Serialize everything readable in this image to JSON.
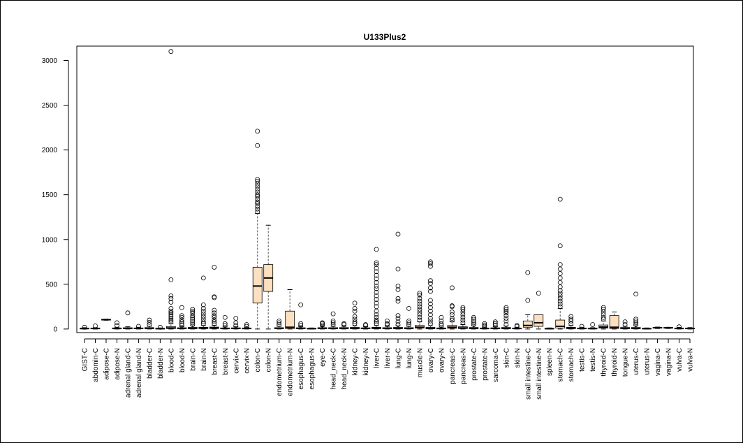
{
  "chart_data": {
    "type": "box",
    "title": "U133Plus2",
    "xlabel": "",
    "ylabel": "",
    "ylim": [
      -40,
      3160
    ],
    "yticks": [
      0,
      500,
      1000,
      1500,
      2000,
      2500,
      3000
    ],
    "colors": {
      "box_fill": "#fde0c0",
      "stroke": "#000000",
      "whisker": "#555555"
    },
    "categories": [
      "GIST-C",
      "abdomin-C",
      "adipose-C",
      "adipose-N",
      "adrenal gland-C",
      "adrenal gland-N",
      "bladder-C",
      "bladder-N",
      "blood-C",
      "blood-N",
      "brain-C",
      "brain-N",
      "breast-C",
      "breast-N",
      "cervix-C",
      "cervix-N",
      "colon-C",
      "colon-N",
      "endometrium-C",
      "endometrium-N",
      "esophagus-C",
      "esophagus-N",
      "eye-C",
      "head_neck-C",
      "head_neck-N",
      "kidney-C",
      "kidney-N",
      "liver-C",
      "liver-N",
      "lung-C",
      "lung-N",
      "muscle-N",
      "ovary-C",
      "ovary-N",
      "pancreas-C",
      "pancreas-N",
      "prostate-C",
      "prostate-N",
      "sarcoma-C",
      "skin-C",
      "skin-N",
      "small intestine-C",
      "small intestine-N",
      "spleen-N",
      "stomach-C",
      "stomach-N",
      "testis-C",
      "testis-N",
      "thyroid-C",
      "thyroid-N",
      "tongue-N",
      "uterus-C",
      "uterus-N",
      "vagina-C",
      "vagina-N",
      "vulva-C",
      "vulva-N"
    ],
    "boxes": [
      {
        "q1": 2,
        "med": 5,
        "q3": 9,
        "lo": 0,
        "hi": 15,
        "out": [
          20
        ]
      },
      {
        "q1": 3,
        "med": 6,
        "q3": 10,
        "lo": 0,
        "hi": 15,
        "out": [
          35
        ]
      },
      {
        "q1": 100,
        "med": 104,
        "q3": 108,
        "lo": 98,
        "hi": 110,
        "out": []
      },
      {
        "q1": 3,
        "med": 6,
        "q3": 12,
        "lo": 0,
        "hi": 20,
        "out": [
          40,
          70
        ]
      },
      {
        "q1": 4,
        "med": 8,
        "q3": 14,
        "lo": 0,
        "hi": 25,
        "out": [
          180
        ]
      },
      {
        "q1": 3,
        "med": 7,
        "q3": 12,
        "lo": 0,
        "hi": 20,
        "out": [
          30
        ]
      },
      {
        "q1": 4,
        "med": 9,
        "q3": 16,
        "lo": 0,
        "hi": 30,
        "out": [
          50,
          75,
          100
        ]
      },
      {
        "q1": 2,
        "med": 4,
        "q3": 7,
        "lo": 0,
        "hi": 12,
        "out": [
          20
        ]
      },
      {
        "q1": 5,
        "med": 12,
        "q3": 28,
        "lo": 0,
        "hi": 60,
        "out": [
          80,
          100,
          120,
          140,
          160,
          180,
          200,
          230,
          300,
          340,
          370,
          550,
          3100
        ]
      },
      {
        "q1": 3,
        "med": 7,
        "q3": 14,
        "lo": 0,
        "hi": 28,
        "out": [
          40,
          60,
          80,
          100,
          130,
          150,
          240
        ]
      },
      {
        "q1": 4,
        "med": 9,
        "q3": 18,
        "lo": 0,
        "hi": 35,
        "out": [
          50,
          70,
          90,
          110,
          130,
          150,
          180,
          200,
          220
        ]
      },
      {
        "q1": 5,
        "med": 10,
        "q3": 20,
        "lo": 0,
        "hi": 40,
        "out": [
          60,
          80,
          110,
          140,
          170,
          200,
          230,
          270,
          570
        ]
      },
      {
        "q1": 5,
        "med": 11,
        "q3": 22,
        "lo": 0,
        "hi": 42,
        "out": [
          60,
          80,
          100,
          130,
          150,
          180,
          210,
          350,
          360,
          690
        ]
      },
      {
        "q1": 3,
        "med": 6,
        "q3": 12,
        "lo": 0,
        "hi": 24,
        "out": [
          40,
          60,
          130
        ]
      },
      {
        "q1": 3,
        "med": 7,
        "q3": 13,
        "lo": 0,
        "hi": 25,
        "out": [
          40,
          70,
          120
        ]
      },
      {
        "q1": 3,
        "med": 6,
        "q3": 11,
        "lo": 0,
        "hi": 20,
        "out": [
          30,
          50
        ]
      },
      {
        "q1": 290,
        "med": 480,
        "q3": 690,
        "lo": 0,
        "hi": 1290,
        "out": [
          1310,
          1340,
          1370,
          1400,
          1420,
          1450,
          1480,
          1500,
          1530,
          1560,
          1590,
          1620,
          1650,
          1670,
          2050,
          2210
        ]
      },
      {
        "q1": 420,
        "med": 570,
        "q3": 720,
        "lo": 0,
        "hi": 1160,
        "out": []
      },
      {
        "q1": 3,
        "med": 8,
        "q3": 15,
        "lo": 0,
        "hi": 30,
        "out": [
          50,
          70,
          90
        ]
      },
      {
        "q1": 5,
        "med": 20,
        "q3": 200,
        "lo": 0,
        "hi": 440,
        "out": []
      },
      {
        "q1": 3,
        "med": 7,
        "q3": 14,
        "lo": 0,
        "hi": 28,
        "out": [
          40,
          60,
          270
        ]
      },
      {
        "q1": 2,
        "med": 4,
        "q3": 8,
        "lo": 0,
        "hi": 12,
        "out": []
      },
      {
        "q1": 4,
        "med": 8,
        "q3": 15,
        "lo": 0,
        "hi": 30,
        "out": [
          45,
          60,
          70
        ]
      },
      {
        "q1": 3,
        "med": 8,
        "q3": 15,
        "lo": 0,
        "hi": 30,
        "out": [
          50,
          70,
          90,
          170
        ]
      },
      {
        "q1": 4,
        "med": 9,
        "q3": 16,
        "lo": 0,
        "hi": 30,
        "out": [
          50,
          60
        ]
      },
      {
        "q1": 4,
        "med": 9,
        "q3": 18,
        "lo": 0,
        "hi": 35,
        "out": [
          60,
          80,
          110,
          140,
          200,
          230,
          290
        ]
      },
      {
        "q1": 3,
        "med": 7,
        "q3": 13,
        "lo": 0,
        "hi": 25,
        "out": [
          40,
          50
        ]
      },
      {
        "q1": 4,
        "med": 10,
        "q3": 20,
        "lo": 0,
        "hi": 40,
        "out": [
          60,
          80,
          100,
          130,
          160,
          200,
          250,
          290,
          330,
          370,
          410,
          450,
          480,
          520,
          560,
          600,
          640,
          680,
          720,
          740,
          890
        ]
      },
      {
        "q1": 3,
        "med": 8,
        "q3": 15,
        "lo": 0,
        "hi": 30,
        "out": [
          50,
          60,
          90
        ]
      },
      {
        "q1": 4,
        "med": 9,
        "q3": 18,
        "lo": 0,
        "hi": 35,
        "out": [
          50,
          80,
          120,
          150,
          310,
          340,
          440,
          480,
          670,
          1060
        ]
      },
      {
        "q1": 3,
        "med": 8,
        "q3": 15,
        "lo": 0,
        "hi": 30,
        "out": [
          50,
          70,
          90,
          230
        ]
      },
      {
        "q1": 10,
        "med": 20,
        "q3": 40,
        "lo": 0,
        "hi": 80,
        "out": [
          100,
          130,
          160,
          190,
          220,
          250,
          280,
          310,
          340,
          380,
          400
        ]
      },
      {
        "q1": 4,
        "med": 9,
        "q3": 18,
        "lo": 0,
        "hi": 35,
        "out": [
          60,
          90,
          120,
          160,
          200,
          240,
          280,
          320,
          420,
          460,
          510,
          540,
          700,
          730,
          750
        ]
      },
      {
        "q1": 3,
        "med": 6,
        "q3": 12,
        "lo": 0,
        "hi": 22,
        "out": [
          40,
          60,
          90,
          130
        ]
      },
      {
        "q1": 8,
        "med": 20,
        "q3": 40,
        "lo": 0,
        "hi": 80,
        "out": [
          100,
          120,
          160,
          190,
          250,
          260,
          460
        ]
      },
      {
        "q1": 5,
        "med": 12,
        "q3": 25,
        "lo": 0,
        "hi": 50,
        "out": [
          70,
          100,
          130,
          160,
          190,
          220,
          240
        ]
      },
      {
        "q1": 4,
        "med": 9,
        "q3": 17,
        "lo": 0,
        "hi": 35,
        "out": [
          50,
          70,
          90,
          110,
          130
        ]
      },
      {
        "q1": 3,
        "med": 6,
        "q3": 11,
        "lo": 0,
        "hi": 20,
        "out": [
          30,
          45,
          60
        ]
      },
      {
        "q1": 3,
        "med": 7,
        "q3": 13,
        "lo": 0,
        "hi": 25,
        "out": [
          40,
          60,
          80
        ]
      },
      {
        "q1": 4,
        "med": 9,
        "q3": 17,
        "lo": 0,
        "hi": 33,
        "out": [
          50,
          90,
          120,
          150,
          180,
          200,
          220,
          240
        ]
      },
      {
        "q1": 3,
        "med": 6,
        "q3": 11,
        "lo": 0,
        "hi": 20,
        "out": [
          30,
          40
        ]
      },
      {
        "q1": 20,
        "med": 40,
        "q3": 90,
        "lo": 0,
        "hi": 160,
        "out": [
          320,
          630
        ]
      },
      {
        "q1": 30,
        "med": 70,
        "q3": 160,
        "lo": 0,
        "hi": 160,
        "out": [
          400
        ]
      },
      {
        "q1": 2,
        "med": 4,
        "q3": 7,
        "lo": 0,
        "hi": 12,
        "out": []
      },
      {
        "q1": 10,
        "med": 30,
        "q3": 100,
        "lo": 0,
        "hi": 230,
        "out": [
          250,
          280,
          310,
          340,
          370,
          400,
          430,
          470,
          520,
          570,
          620,
          670,
          720,
          930,
          1450
        ]
      },
      {
        "q1": 4,
        "med": 10,
        "q3": 20,
        "lo": 0,
        "hi": 40,
        "out": [
          60,
          90,
          110,
          140
        ]
      },
      {
        "q1": 3,
        "med": 6,
        "q3": 11,
        "lo": 0,
        "hi": 20,
        "out": [
          30
        ]
      },
      {
        "q1": 2,
        "med": 5,
        "q3": 9,
        "lo": 0,
        "hi": 15,
        "out": [
          50
        ]
      },
      {
        "q1": 10,
        "med": 22,
        "q3": 45,
        "lo": 0,
        "hi": 90,
        "out": [
          110,
          130,
          160,
          190,
          220,
          240
        ]
      },
      {
        "q1": 5,
        "med": 20,
        "q3": 150,
        "lo": 0,
        "hi": 190,
        "out": []
      },
      {
        "q1": 4,
        "med": 9,
        "q3": 17,
        "lo": 0,
        "hi": 30,
        "out": [
          50,
          80
        ]
      },
      {
        "q1": 4,
        "med": 9,
        "q3": 17,
        "lo": 0,
        "hi": 35,
        "out": [
          50,
          70,
          90,
          110,
          390
        ]
      },
      {
        "q1": 2,
        "med": 4,
        "q3": 7,
        "lo": 0,
        "hi": 12,
        "out": []
      },
      {
        "q1": 10,
        "med": 14,
        "q3": 18,
        "lo": 6,
        "hi": 22,
        "out": []
      },
      {
        "q1": 10,
        "med": 13,
        "q3": 17,
        "lo": 6,
        "hi": 20,
        "out": []
      },
      {
        "q1": 3,
        "med": 6,
        "q3": 10,
        "lo": 0,
        "hi": 18,
        "out": [
          25
        ]
      },
      {
        "q1": 3,
        "med": 6,
        "q3": 10,
        "lo": 0,
        "hi": 16,
        "out": []
      }
    ]
  }
}
